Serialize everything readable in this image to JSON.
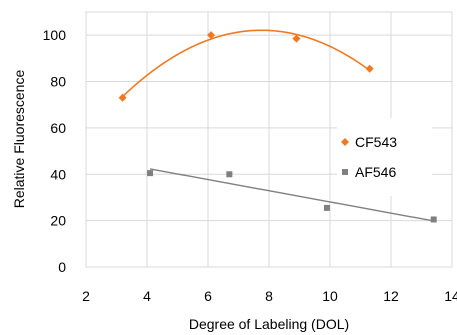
{
  "chart_data": {
    "type": "scatter",
    "xlabel": "Degree of Labeling (DOL)",
    "ylabel": "Relative Fluorescence",
    "xlim": [
      2,
      14
    ],
    "ylim": [
      0,
      110
    ],
    "x_ticks": [
      "2",
      "4",
      "6",
      "8",
      "10",
      "12",
      "14"
    ],
    "y_ticks": [
      "0",
      "20",
      "40",
      "60",
      "80",
      "100"
    ],
    "grid": true,
    "legend_position": "right",
    "series": [
      {
        "name": "CF543",
        "color": "#F07820",
        "marker": "diamond",
        "points": [
          [
            3.2,
            73
          ],
          [
            6.1,
            100
          ],
          [
            8.9,
            98.5
          ],
          [
            11.3,
            85.5
          ]
        ],
        "trendline": "polynomial"
      },
      {
        "name": "AF546",
        "color": "#808080",
        "marker": "square",
        "points": [
          [
            4.1,
            40.5
          ],
          [
            6.7,
            40
          ],
          [
            9.9,
            25.5
          ],
          [
            13.4,
            20.5
          ]
        ],
        "trendline": "linear"
      }
    ]
  }
}
